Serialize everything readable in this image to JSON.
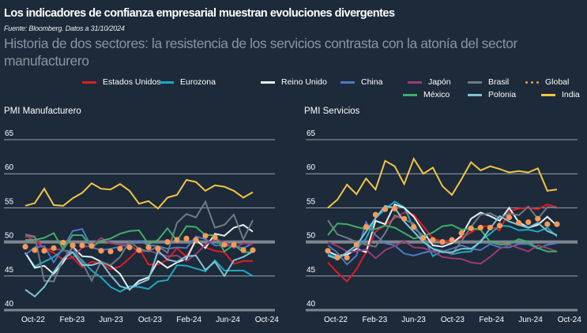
{
  "header": {
    "title": "Los indicadores de confianza empresarial muestran evoluciones divergentes",
    "source": "Fuente: Bloomberg.  Datos a 31/10/2024",
    "subtitle": "Historia de dos sectores: la resistencia de los servicios contrasta con la atonía del sector manufacturero"
  },
  "legend": [
    {
      "name": "Estados Unidos",
      "color": "#e31b23",
      "style": "line"
    },
    {
      "name": "Eurozona",
      "color": "#1fa8c3",
      "style": "line"
    },
    {
      "name": "Reino Unido",
      "color": "#e6f1f5",
      "style": "line"
    },
    {
      "name": "China",
      "color": "#4f79c4",
      "style": "line"
    },
    {
      "name": "Japón",
      "color": "#9c3b74",
      "style": "line"
    },
    {
      "name": "Brasil",
      "color": "#6e7b84",
      "style": "line"
    },
    {
      "name": "Global",
      "color": "#f59a57",
      "style": "dots"
    },
    {
      "name": "México",
      "color": "#3fae6a",
      "style": "line"
    },
    {
      "name": "Polonia",
      "color": "#7fc3d6",
      "style": "line"
    },
    {
      "name": "India",
      "color": "#f4c542",
      "style": "line"
    }
  ],
  "chart_data": [
    {
      "type": "line",
      "title": "PMI Manufacturero",
      "xlabel": "",
      "ylabel": "",
      "ylim": [
        40,
        65
      ],
      "yticks": [
        "40",
        "45",
        "50",
        "55",
        "60",
        "65"
      ],
      "xtick_labels": [
        "Oct-22",
        "Feb-23",
        "Jun-23",
        "Oct-23",
        "Feb-24",
        "Jun-24",
        "Oct-24"
      ],
      "x": [
        "Sep-22",
        "Oct-22",
        "Nov-22",
        "Dec-22",
        "Jan-23",
        "Feb-23",
        "Mar-23",
        "Apr-23",
        "May-23",
        "Jun-23",
        "Jul-23",
        "Aug-23",
        "Sep-23",
        "Oct-23",
        "Nov-23",
        "Dec-23",
        "Jan-24",
        "Feb-24",
        "Mar-24",
        "Apr-24",
        "May-24",
        "Jun-24",
        "Jul-24",
        "Aug-24",
        "Sep-24"
      ],
      "grid": true,
      "reference_line": 50,
      "series": [
        {
          "name": "Estados Unidos",
          "values": [
            50.9,
            50.2,
            49.0,
            48.4,
            47.4,
            47.7,
            46.3,
            47.1,
            46.9,
            46.0,
            46.4,
            47.6,
            49.0,
            46.7,
            46.7,
            47.4,
            49.1,
            47.8,
            50.3,
            49.2,
            48.7,
            48.5,
            46.8,
            47.2,
            47.2
          ]
        },
        {
          "name": "Eurozona",
          "values": [
            48.4,
            46.4,
            47.1,
            47.8,
            48.8,
            48.5,
            47.3,
            45.8,
            44.8,
            43.4,
            42.7,
            43.5,
            43.4,
            43.1,
            44.2,
            44.4,
            46.6,
            46.5,
            46.1,
            45.7,
            47.3,
            45.8,
            45.8,
            45.8,
            45.0
          ]
        },
        {
          "name": "Reino Unido",
          "values": [
            48.4,
            46.2,
            46.5,
            45.3,
            47.0,
            49.3,
            47.9,
            47.8,
            47.1,
            46.5,
            45.3,
            43.0,
            44.3,
            44.8,
            47.2,
            46.2,
            47.0,
            47.5,
            50.3,
            49.1,
            51.2,
            50.9,
            52.1,
            52.5,
            51.5
          ]
        },
        {
          "name": "China",
          "values": [
            48.1,
            49.2,
            49.4,
            47.0,
            49.2,
            51.6,
            51.9,
            49.2,
            48.8,
            49.0,
            49.3,
            49.7,
            50.2,
            49.5,
            49.4,
            49.0,
            49.2,
            49.1,
            50.8,
            50.4,
            49.5,
            49.5,
            49.4,
            49.1,
            49.8
          ]
        },
        {
          "name": "Japón",
          "values": [
            50.8,
            50.7,
            49.0,
            48.9,
            48.9,
            47.7,
            49.2,
            49.5,
            50.6,
            49.8,
            49.6,
            49.6,
            48.5,
            48.7,
            48.3,
            47.9,
            48.0,
            47.2,
            48.2,
            49.6,
            50.4,
            50.0,
            49.1,
            49.8,
            49.7
          ]
        },
        {
          "name": "Brasil",
          "values": [
            51.1,
            50.8,
            44.3,
            44.2,
            47.5,
            49.2,
            47.0,
            44.3,
            47.1,
            46.6,
            47.8,
            50.1,
            49.0,
            48.6,
            49.4,
            48.4,
            52.8,
            54.1,
            53.6,
            55.9,
            52.1,
            52.5,
            54.0,
            50.4,
            53.2
          ]
        },
        {
          "name": "Global",
          "values": [
            49.3,
            48.8,
            48.7,
            49.1,
            49.9,
            49.5,
            49.5,
            49.4,
            48.7,
            48.6,
            49.0,
            49.2,
            48.8,
            49.2,
            49.0,
            50.0,
            50.3,
            50.5,
            50.3,
            50.9,
            50.7,
            49.6,
            49.6,
            48.8,
            48.8
          ]
        },
        {
          "name": "México",
          "values": [
            50.3,
            50.3,
            50.6,
            51.3,
            48.9,
            51.0,
            51.0,
            49.2,
            50.2,
            50.5,
            51.2,
            51.6,
            51.7,
            49.7,
            50.3,
            52.0,
            50.2,
            52.3,
            52.2,
            51.0,
            51.0,
            48.6,
            49.6,
            48.5,
            48.5
          ]
        },
        {
          "name": "Polonia",
          "values": [
            43.0,
            42.0,
            43.4,
            45.6,
            47.5,
            48.5,
            46.6,
            46.6,
            47.0,
            45.1,
            43.5,
            43.1,
            43.9,
            44.5,
            48.7,
            47.4,
            47.1,
            47.9,
            48.0,
            45.9,
            47.1,
            45.0,
            47.3,
            47.8,
            48.6
          ]
        },
        {
          "name": "India",
          "values": [
            55.3,
            55.7,
            57.8,
            55.4,
            55.3,
            56.4,
            57.2,
            58.6,
            57.8,
            57.7,
            58.5,
            57.5,
            55.6,
            56.0,
            54.9,
            56.5,
            56.9,
            59.1,
            58.8,
            57.5,
            58.3,
            58.1,
            57.5,
            56.5,
            57.3
          ]
        }
      ]
    },
    {
      "type": "line",
      "title": "PMI Servicios",
      "xlabel": "",
      "ylabel": "",
      "ylim": [
        40,
        65
      ],
      "yticks": [
        "40",
        "45",
        "50",
        "55",
        "60",
        "65"
      ],
      "xtick_labels": [
        "Oct-22",
        "Feb-23",
        "Jun-23",
        "Oct-23",
        "Feb-24",
        "Jun-24",
        "Oct-24"
      ],
      "x": [
        "Sep-22",
        "Oct-22",
        "Nov-22",
        "Dec-22",
        "Jan-23",
        "Feb-23",
        "Mar-23",
        "Apr-23",
        "May-23",
        "Jun-23",
        "Jul-23",
        "Aug-23",
        "Sep-23",
        "Oct-23",
        "Nov-23",
        "Dec-23",
        "Jan-24",
        "Feb-24",
        "Mar-24",
        "Apr-24",
        "May-24",
        "Jun-24",
        "Jul-24",
        "Aug-24",
        "Sep-24"
      ],
      "grid": true,
      "reference_line": 50,
      "series": [
        {
          "name": "Estados Unidos",
          "values": [
            47.0,
            45.5,
            44.2,
            46.0,
            48.5,
            51.5,
            52.5,
            53.5,
            54.3,
            54.0,
            52.3,
            50.5,
            50.1,
            50.0,
            50.6,
            51.4,
            52.3,
            52.3,
            51.7,
            54.5,
            54.9,
            55.0,
            54.8,
            55.5,
            55.1
          ]
        },
        {
          "name": "Eurozona",
          "values": [
            48.2,
            47.7,
            48.3,
            49.0,
            50.5,
            53.5,
            54.8,
            55.9,
            55.1,
            52.0,
            50.9,
            47.9,
            48.7,
            48.2,
            48.5,
            48.6,
            50.2,
            51.2,
            52.4,
            52.3,
            51.7,
            51.8,
            51.5,
            52.1,
            50.8
          ]
        },
        {
          "name": "Reino Unido",
          "values": [
            48.6,
            48.0,
            48.1,
            49.0,
            48.5,
            53.1,
            52.6,
            55.5,
            55.0,
            53.7,
            51.5,
            49.5,
            49.3,
            49.8,
            50.9,
            53.4,
            54.3,
            53.8,
            53.1,
            55.0,
            52.9,
            52.1,
            52.5,
            53.7,
            52.4
          ]
        },
        {
          "name": "China",
          "values": [
            49.5,
            48.4,
            46.7,
            48.0,
            52.9,
            51.0,
            49.8,
            49.5,
            48.3,
            48.0,
            48.4,
            48.7,
            48.6,
            49.0,
            49.5,
            49.0,
            48.8,
            49.7,
            49.2,
            49.2,
            49.7,
            49.7,
            49.0,
            49.6,
            49.8
          ]
        },
        {
          "name": "Japón",
          "values": [
            50.0,
            49.4,
            48.6,
            48.6,
            48.9,
            47.6,
            48.8,
            49.4,
            50.1,
            49.2,
            49.1,
            48.6,
            47.8,
            47.6,
            47.5,
            47.0,
            46.8,
            47.8,
            49.0,
            49.6,
            49.1,
            48.6,
            49.5,
            49.1,
            48.6
          ]
        },
        {
          "name": "Brasil",
          "values": [
            53.2,
            51.1,
            50.6,
            50.0,
            49.6,
            49.3,
            51.3,
            53.9,
            53.3,
            52.7,
            50.2,
            49.0,
            48.7,
            48.2,
            50.1,
            52.2,
            54.0,
            54.2,
            53.5,
            54.2,
            53.9,
            55.2,
            53.4,
            55.1,
            55.0
          ]
        },
        {
          "name": "Global",
          "values": [
            48.7,
            47.7,
            47.7,
            49.6,
            52.2,
            54.0,
            54.8,
            54.9,
            53.4,
            52.2,
            50.6,
            50.3,
            50.0,
            50.3,
            51.3,
            52.0,
            52.1,
            52.1,
            52.4,
            53.6,
            52.8,
            52.9,
            53.4,
            52.6,
            52.6
          ]
        },
        {
          "name": "México",
          "values": [
            51.0,
            52.7,
            52.6,
            52.2,
            51.9,
            51.9,
            52.4,
            52.1,
            51.3,
            50.5,
            50.8,
            51.4,
            52.3,
            52.5,
            51.8,
            52.0,
            51.8,
            50.0,
            49.6,
            49.7,
            50.4,
            50.0,
            49.1,
            48.6,
            48.6
          ]
        },
        {
          "name": "Polonia",
          "values": [
            48.0,
            47.5,
            48.5,
            49.5,
            51.5,
            53.5,
            55.3,
            55.0,
            53.0,
            51.5,
            50.0,
            49.0,
            48.5,
            48.5,
            49.0,
            49.0,
            50.0,
            52.0,
            53.8,
            53.0,
            52.5,
            52.1,
            52.8,
            51.6,
            51.0
          ]
        },
        {
          "name": "India",
          "values": [
            55.0,
            56.2,
            58.4,
            57.0,
            59.3,
            57.7,
            61.9,
            61.1,
            58.5,
            62.2,
            60.0,
            60.9,
            58.2,
            56.9,
            59.2,
            61.7,
            60.5,
            61.1,
            60.7,
            60.2,
            60.4,
            60.2,
            60.8,
            57.5,
            57.7
          ]
        }
      ]
    }
  ]
}
